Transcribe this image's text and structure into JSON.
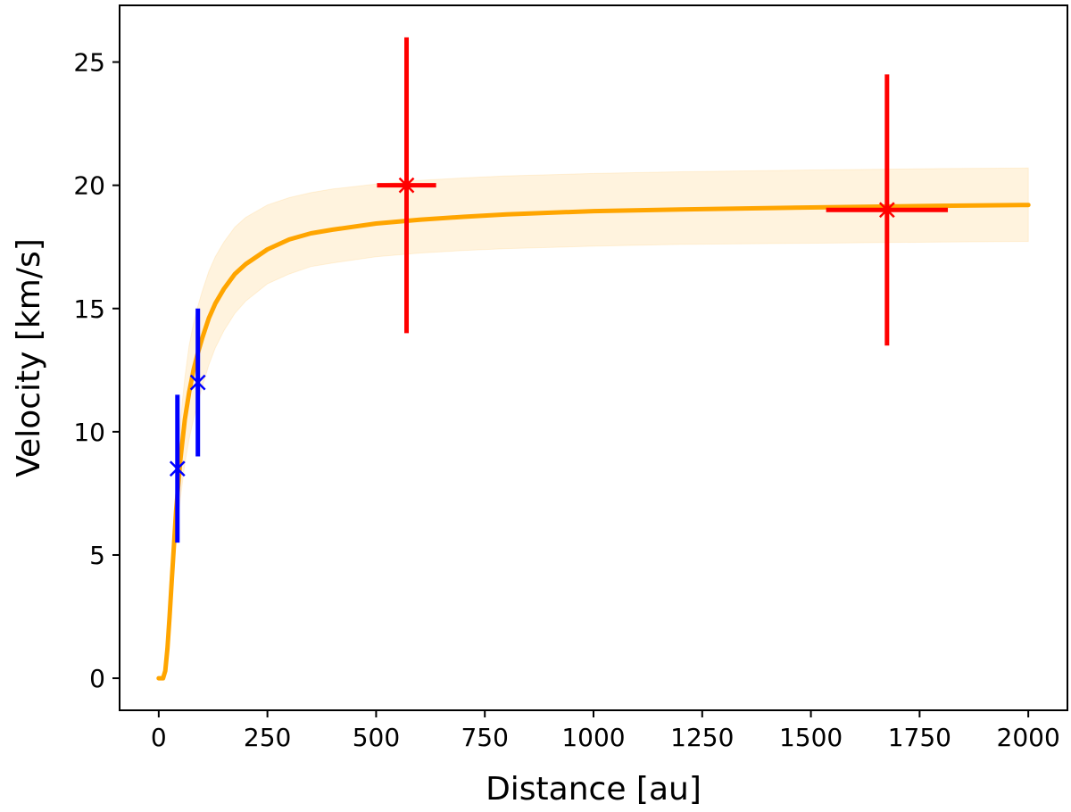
{
  "chart_data": {
    "type": "scatter",
    "title": "",
    "xlabel": "Distance [au]",
    "ylabel": "Velocity [km/s]",
    "xlim": [
      -90,
      2090
    ],
    "ylim": [
      -1.3,
      27.3
    ],
    "x_ticks": [
      0,
      250,
      500,
      750,
      1000,
      1250,
      1500,
      1750,
      2000
    ],
    "y_ticks": [
      0,
      5,
      10,
      15,
      20,
      25
    ],
    "grid": false,
    "legend": "none",
    "series": [
      {
        "kind": "errorbar",
        "color": "#0000ff",
        "marker": "x",
        "points": [
          {
            "x": 43,
            "y": 8.5,
            "yerr": 3.0,
            "xerr": 0
          },
          {
            "x": 90,
            "y": 12.0,
            "yerr": 3.0,
            "xerr": 0
          }
        ]
      },
      {
        "kind": "errorbar",
        "color": "#ff0000",
        "marker": "x",
        "points": [
          {
            "x": 570,
            "y": 20.0,
            "yerr": 6.0,
            "xerr": 68
          },
          {
            "x": 1675,
            "y": 19.0,
            "yerr": 5.5,
            "xerr": 140
          }
        ]
      },
      {
        "kind": "model",
        "color": "#ffa500",
        "band_color": "#ffa500",
        "band_opacity": 0.13,
        "x": [
          0,
          10,
          15,
          20,
          25,
          30,
          40,
          50,
          60,
          70,
          80,
          90,
          100,
          115,
          130,
          150,
          175,
          200,
          250,
          300,
          350,
          400,
          500,
          600,
          700,
          800,
          1000,
          1200,
          1500,
          1800,
          2000
        ],
        "y": [
          0,
          0,
          0.3,
          1.2,
          2.5,
          4.0,
          6.8,
          8.9,
          10.5,
          11.6,
          12.5,
          13.2,
          13.8,
          14.6,
          15.2,
          15.8,
          16.4,
          16.8,
          17.4,
          17.8,
          18.05,
          18.2,
          18.45,
          18.6,
          18.72,
          18.82,
          18.95,
          19.02,
          19.1,
          19.17,
          19.2
        ],
        "upper": [
          0,
          0,
          0.3,
          1.4,
          3.0,
          4.8,
          8.0,
          10.5,
          12.2,
          13.5,
          14.4,
          15.1,
          15.7,
          16.5,
          17.1,
          17.7,
          18.3,
          18.7,
          19.2,
          19.5,
          19.7,
          19.85,
          20.05,
          20.2,
          20.3,
          20.38,
          20.48,
          20.55,
          20.62,
          20.68,
          20.7
        ],
        "lower": [
          0,
          0,
          0.2,
          1.0,
          2.0,
          3.2,
          5.6,
          7.3,
          8.7,
          9.7,
          10.5,
          11.2,
          11.8,
          12.7,
          13.4,
          14.1,
          14.8,
          15.3,
          16.0,
          16.4,
          16.7,
          16.85,
          17.1,
          17.25,
          17.35,
          17.43,
          17.53,
          17.6,
          17.65,
          17.7,
          17.72
        ]
      }
    ]
  }
}
